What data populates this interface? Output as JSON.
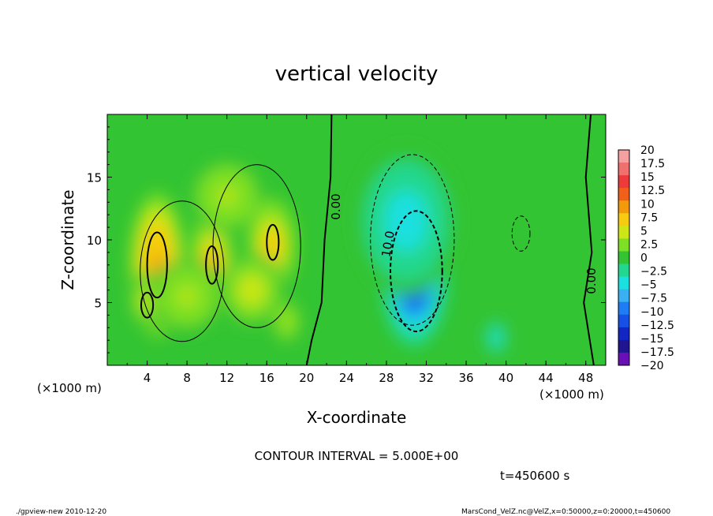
{
  "chart_data": {
    "type": "heatmap",
    "title": "vertical velocity",
    "xlabel": "X-coordinate",
    "ylabel": "Z-coordinate",
    "x_unit": "(×1000 m)",
    "y_unit": "(×1000 m)",
    "xlim": [
      0,
      50
    ],
    "ylim": [
      0,
      20
    ],
    "x_ticks": [
      "4",
      "8",
      "12",
      "16",
      "20",
      "24",
      "28",
      "32",
      "36",
      "40",
      "44",
      "48"
    ],
    "y_ticks": [
      "5",
      "10",
      "15"
    ],
    "colorbar_labels": [
      "20",
      "17.5",
      "15",
      "12.5",
      "10",
      "7.5",
      "5",
      "2.5",
      "0",
      "−2.5",
      "−5",
      "−7.5",
      "−10",
      "−12.5",
      "−15",
      "−17.5",
      "−20"
    ],
    "colorbar_colors": [
      "#f5a0a0",
      "#f07070",
      "#ee3a3a",
      "#f06018",
      "#f39a0c",
      "#f7cc10",
      "#cfe616",
      "#7ee024",
      "#33c433",
      "#22d88e",
      "#1ae0e0",
      "#3ab0f2",
      "#1e7cf4",
      "#1650e6",
      "#1226c4",
      "#201490",
      "#6a0fb5"
    ],
    "contour_labels": [
      "0.00",
      "10.0",
      "0.00"
    ],
    "contour_interval_text": "CONTOUR INTERVAL = 5.000E+00",
    "time_text": "t=450600 s",
    "blobs": [
      {
        "x": 5.0,
        "z": 8.0,
        "sx": 1.8,
        "sz": 3.8,
        "w": 10.5
      },
      {
        "x": 4.0,
        "z": 5.2,
        "sx": 1.2,
        "sz": 1.5,
        "w": 5.0
      },
      {
        "x": 10.5,
        "z": 8.2,
        "sx": 1.4,
        "sz": 2.8,
        "w": 9.0
      },
      {
        "x": 12.0,
        "z": 13.5,
        "sx": 2.5,
        "sz": 2.0,
        "w": 4.0
      },
      {
        "x": 16.5,
        "z": 9.5,
        "sx": 1.6,
        "sz": 2.5,
        "w": 8.0
      },
      {
        "x": 14.5,
        "z": 6.0,
        "sx": 2.2,
        "sz": 2.0,
        "w": 5.0
      },
      {
        "x": 8.0,
        "z": 5.5,
        "sx": 2.5,
        "sz": 2.0,
        "w": 4.0
      },
      {
        "x": 18.0,
        "z": 3.5,
        "sx": 1.0,
        "sz": 1.2,
        "w": 4.0
      },
      {
        "x": 30.8,
        "z": 7.2,
        "sx": 2.2,
        "sz": 3.8,
        "w": -15.0
      },
      {
        "x": 30.0,
        "z": 11.5,
        "sx": 3.5,
        "sz": 4.0,
        "w": -5.0
      },
      {
        "x": 39.0,
        "z": 2.2,
        "sx": 0.8,
        "sz": 1.0,
        "w": -5.0
      }
    ]
  },
  "footer": {
    "program": "./gpview-new  2010-12-20",
    "source": "MarsCond_VelZ.nc@VelZ,x=0:50000,z=0:20000,t=450600"
  }
}
